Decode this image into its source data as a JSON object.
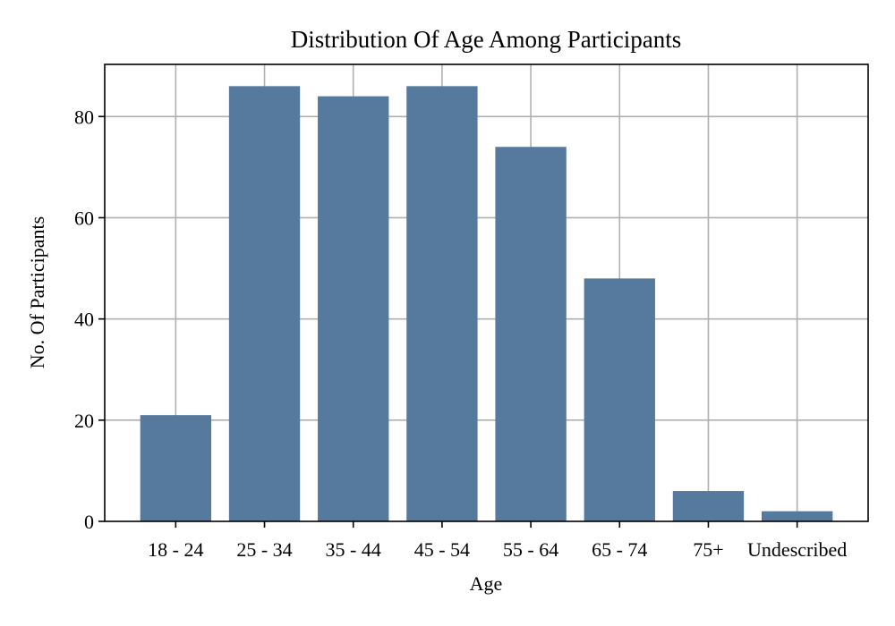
{
  "chart_data": {
    "type": "bar",
    "title": "Distribution Of Age Among Participants",
    "xlabel": "Age",
    "ylabel": "No. Of Participants",
    "categories": [
      "18 - 24",
      "25 - 34",
      "35 - 44",
      "45 - 54",
      "55 - 64",
      "65 - 74",
      "75+",
      "Undescribed"
    ],
    "values": [
      21,
      86,
      84,
      86,
      74,
      48,
      6,
      2
    ],
    "ylim": [
      0,
      90.3
    ],
    "yticks": [
      0,
      20,
      40,
      60,
      80
    ],
    "grid": true,
    "bar_color": "#56799e"
  }
}
